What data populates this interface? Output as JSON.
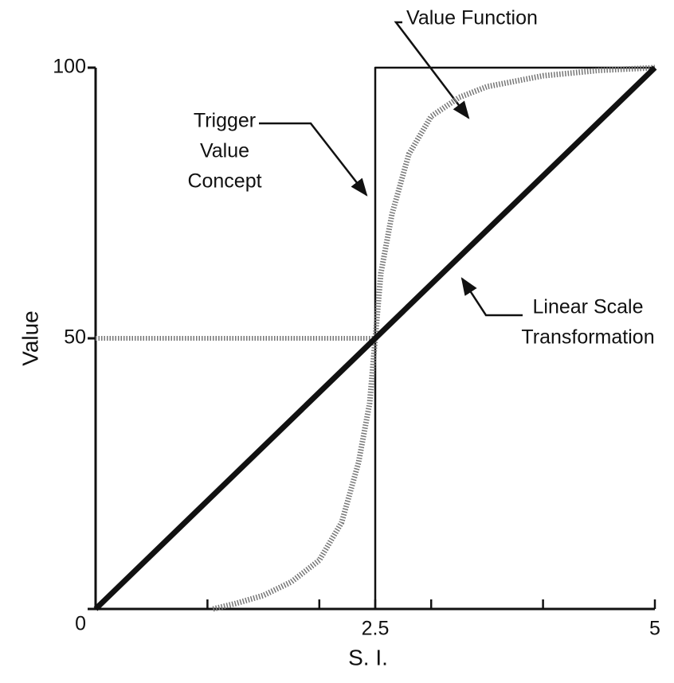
{
  "chart_data": {
    "type": "line",
    "xlabel": "S. I.",
    "ylabel": "Value",
    "xlim": [
      0,
      5
    ],
    "ylim": [
      0,
      100
    ],
    "xticks": [
      2.5,
      5
    ],
    "xminor_ticks": [
      1,
      2,
      3,
      4
    ],
    "yticks": [
      0,
      50,
      100
    ],
    "reference_line": {
      "x": [
        0,
        2.5
      ],
      "y": 50,
      "color": "#777777"
    },
    "series": [
      {
        "style": "thin",
        "color": "#111111",
        "x": [
          2.5,
          2.5,
          5
        ],
        "values": [
          0,
          100,
          100
        ]
      },
      {
        "style": "hatched",
        "color": "#777777",
        "x": [
          1.05,
          1.25,
          1.5,
          1.75,
          2.0,
          2.2,
          2.35,
          2.45,
          2.5,
          2.55,
          2.65,
          2.8,
          3.0,
          3.25,
          3.5,
          4.0,
          4.5,
          5.0
        ],
        "values": [
          0,
          1,
          2.5,
          5,
          9,
          16,
          27,
          38,
          50,
          62,
          73,
          84,
          91,
          94.5,
          96.5,
          98.5,
          99.5,
          100
        ]
      },
      {
        "style": "thick",
        "color": "#111111",
        "x": [
          0,
          5
        ],
        "values": [
          0,
          100
        ]
      }
    ],
    "annotations": [
      {
        "lines": [
          "Value Function"
        ]
      },
      {
        "lines": [
          "Trigger",
          "Value",
          "Concept"
        ]
      },
      {
        "lines": [
          "Linear Scale",
          "Transformation"
        ]
      }
    ]
  }
}
